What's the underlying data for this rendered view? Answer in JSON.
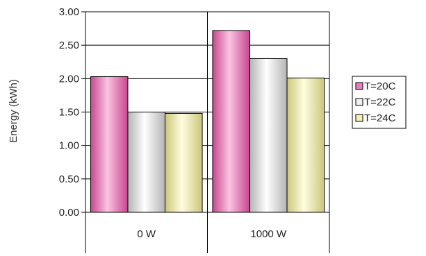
{
  "chart_data": {
    "type": "bar",
    "title": "",
    "xlabel": "",
    "ylabel": "Energy (kWh)",
    "categories": [
      "0 W",
      "1000 W"
    ],
    "series": [
      {
        "name": "T=20C",
        "values": [
          2.03,
          2.72
        ],
        "color": "#e87fb8"
      },
      {
        "name": "T=22C",
        "values": [
          1.5,
          2.3
        ],
        "color": "#f0f0f0"
      },
      {
        "name": "T=24C",
        "values": [
          1.48,
          2.01
        ],
        "color": "#f4f1b0"
      }
    ],
    "ylim": [
      0,
      3.0
    ],
    "yticks": [
      "0.00",
      "0.50",
      "1.00",
      "1.50",
      "2.00",
      "2.50",
      "3.00"
    ],
    "grid": true,
    "legend_position": "right"
  }
}
